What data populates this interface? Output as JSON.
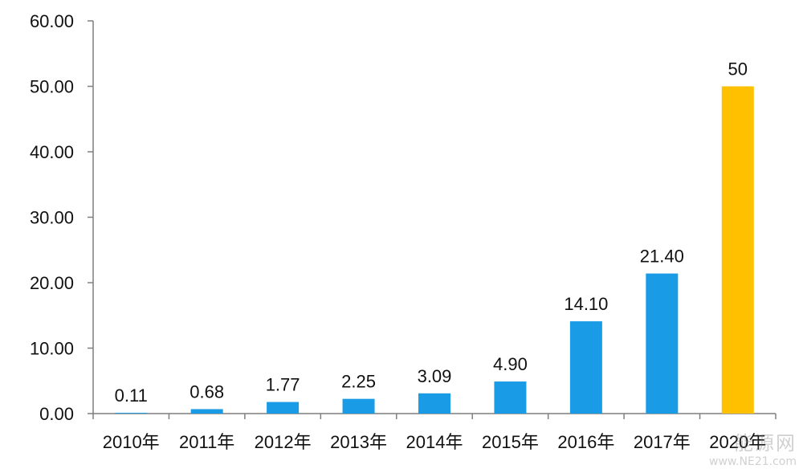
{
  "chart_data": {
    "type": "bar",
    "categories": [
      "2010年",
      "2011年",
      "2012年",
      "2013年",
      "2014年",
      "2015年",
      "2016年",
      "2017年",
      "2020年"
    ],
    "values": [
      0.11,
      0.68,
      1.77,
      2.25,
      3.09,
      4.9,
      14.1,
      21.4,
      50
    ],
    "data_labels": [
      "0.11",
      "0.68",
      "1.77",
      "2.25",
      "3.09",
      "4.90",
      "14.10",
      "21.40",
      "50"
    ],
    "y_ticks": [
      "0.00",
      "10.00",
      "20.00",
      "30.00",
      "40.00",
      "50.00",
      "60.00"
    ],
    "ylim": [
      0,
      60
    ],
    "grid": false,
    "colors": {
      "bar": "#1a9be6",
      "highlight_bar": "#ffc000",
      "axis": "#7f7f7f"
    },
    "highlight_index": 8
  },
  "watermark": {
    "text": "能源网",
    "url": "www.NE21.com"
  }
}
